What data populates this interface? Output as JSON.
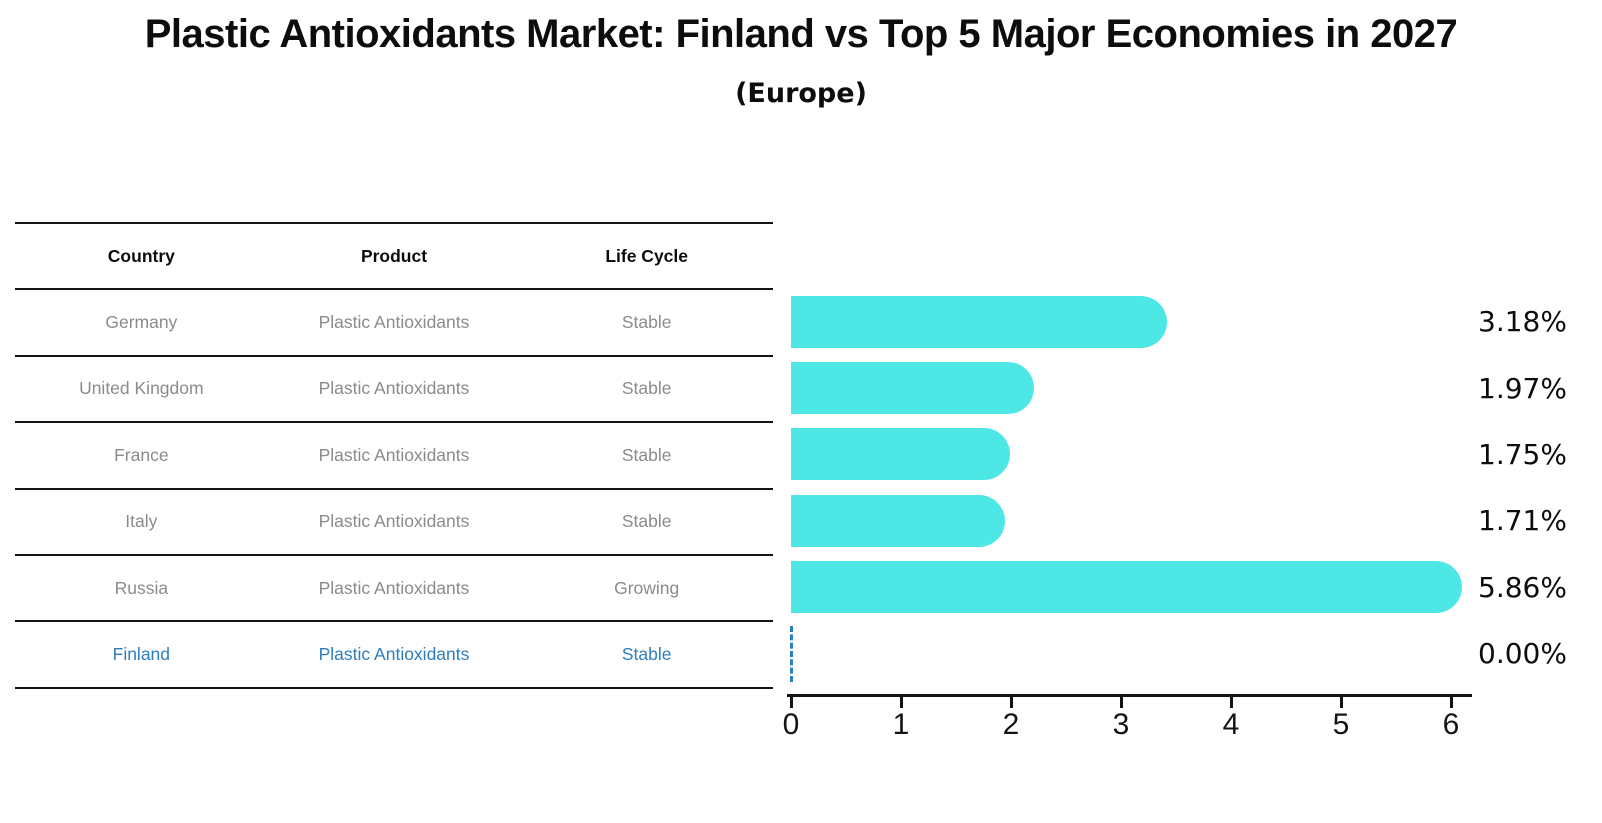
{
  "title": "Plastic Antioxidants Market: Finland vs Top 5 Major Economies in 2027",
  "subtitle": "(Europe)",
  "table": {
    "headers": [
      "Country",
      "Product",
      "Life Cycle"
    ],
    "rows": [
      {
        "country": "Germany",
        "product": "Plastic Antioxidants",
        "life_cycle": "Stable",
        "highlight": false
      },
      {
        "country": "United Kingdom",
        "product": "Plastic Antioxidants",
        "life_cycle": "Stable",
        "highlight": false
      },
      {
        "country": "France",
        "product": "Plastic Antioxidants",
        "life_cycle": "Stable",
        "highlight": false
      },
      {
        "country": "Italy",
        "product": "Plastic Antioxidants",
        "life_cycle": "Stable",
        "highlight": false
      },
      {
        "country": "Russia",
        "product": "Plastic Antioxidants",
        "life_cycle": "Growing",
        "highlight": false
      },
      {
        "country": "Finland",
        "product": "Plastic Antioxidants",
        "life_cycle": "Stable",
        "highlight": true
      }
    ]
  },
  "chart_data": {
    "type": "bar",
    "orientation": "horizontal",
    "title": "Plastic Antioxidants Market: Finland vs Top 5 Major Economies in 2027",
    "subtitle": "(Europe)",
    "categories": [
      "Germany",
      "United Kingdom",
      "France",
      "Italy",
      "Russia",
      "Finland"
    ],
    "values": [
      3.18,
      1.97,
      1.75,
      1.71,
      5.86,
      0.0
    ],
    "data_labels": [
      "3.18%",
      "1.97%",
      "1.75%",
      "1.71%",
      "5.86%",
      "0.00%"
    ],
    "xlim": [
      0,
      6
    ],
    "xticks": [
      0,
      1,
      2,
      3,
      4,
      5,
      6
    ],
    "grid": false,
    "legend": false,
    "bar_color": "#4DE8E6",
    "highlight_country": "Finland",
    "highlight_color": "#2e7ebc",
    "zero_value_style": "dashed-line"
  },
  "colors": {
    "bar": "#4DE8E6",
    "highlight_text": "#2e7ebc",
    "row_text": "#8b8b8b",
    "header_text": "#0d0d0d",
    "line": "#141414"
  }
}
